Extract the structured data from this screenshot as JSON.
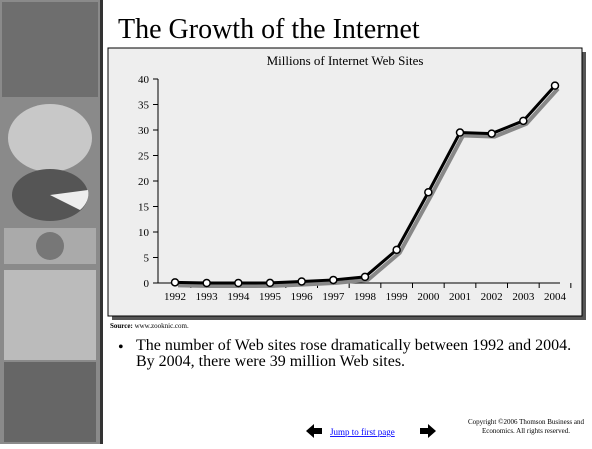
{
  "slide": {
    "title": "The Growth of the Internet",
    "source_label": "Source:",
    "source": "www.zooknic.com.",
    "bullet": "The number of Web sites rose dramatically between 1992 and 2004.  By 2004, there were 39 million Web sites.",
    "link": "Jump to first page",
    "copyright": "Copyright ©2006  Thomson Business and Economics. All rights reserved."
  },
  "chart_data": {
    "type": "line",
    "title": "Millions of Internet Web Sites",
    "categories": [
      "1992",
      "1993",
      "1994",
      "1995",
      "1996",
      "1997",
      "1998",
      "1999",
      "2000",
      "2001",
      "2002",
      "2003",
      "2004"
    ],
    "values": [
      0.13,
      0.0,
      0.0,
      0.02,
      0.3,
      0.6,
      1.2,
      6.5,
      17.8,
      29.5,
      29.3,
      31.8,
      38.7
    ],
    "color": "#000000",
    "ylim": [
      0,
      40
    ],
    "yticks": [
      0,
      5,
      10,
      15,
      20,
      25,
      30,
      35,
      40
    ]
  }
}
